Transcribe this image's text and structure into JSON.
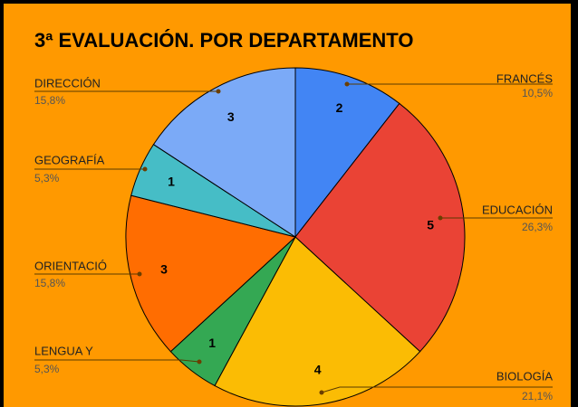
{
  "chart_data": {
    "type": "pie",
    "title": "3ª EVALUACIÓN. POR DEPARTAMENTO",
    "categories": [
      "FRANCÉS",
      "EDUCACIÓN",
      "BIOLOGÍA",
      "LENGUA Y",
      "ORIENTACIÓ",
      "GEOGRAFÍA",
      "DIRECCIÓN"
    ],
    "values": [
      2,
      5,
      4,
      1,
      3,
      1,
      3
    ],
    "percent_labels": [
      "10,5%",
      "26,3%",
      "21,1%",
      "5,3%",
      "15,8%",
      "5,3%",
      "15,8%"
    ],
    "colors": [
      "#4285f4",
      "#ea4335",
      "#fbbc04",
      "#34a853",
      "#ff6d01",
      "#46bdc6",
      "#7baaf7"
    ]
  }
}
